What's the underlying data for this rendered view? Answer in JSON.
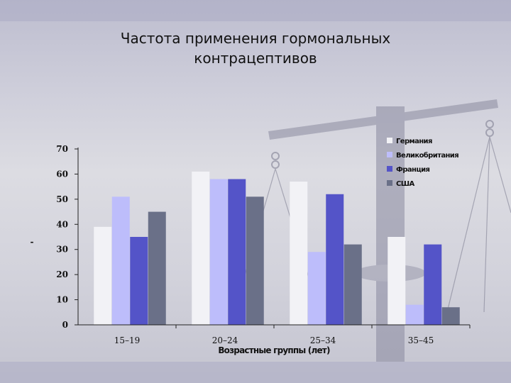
{
  "chart_data": {
    "type": "bar",
    "title": [
      "Частота применения гормональных",
      "контрацептивов"
    ],
    "xlabel": "Возрастные группы (лет)",
    "ylabel": "-",
    "categories": [
      "15–19",
      "20–24",
      "25–34",
      "35–45"
    ],
    "ylim": [
      0,
      70
    ],
    "yticks": [
      0,
      10,
      20,
      30,
      40,
      50,
      60,
      70
    ],
    "legend_position": "top-right",
    "grid": false,
    "series": [
      {
        "name": "Германия",
        "color": "#f2f2f6",
        "values": [
          39,
          61,
          57,
          35
        ]
      },
      {
        "name": "Великобритания",
        "color": "#bdbdfb",
        "values": [
          51,
          58,
          29,
          8
        ]
      },
      {
        "name": "Франция",
        "color": "#5454c8",
        "values": [
          35,
          58,
          52,
          32
        ]
      },
      {
        "name": "США",
        "color": "#6a7088",
        "values": [
          45,
          51,
          32,
          7
        ]
      }
    ]
  }
}
